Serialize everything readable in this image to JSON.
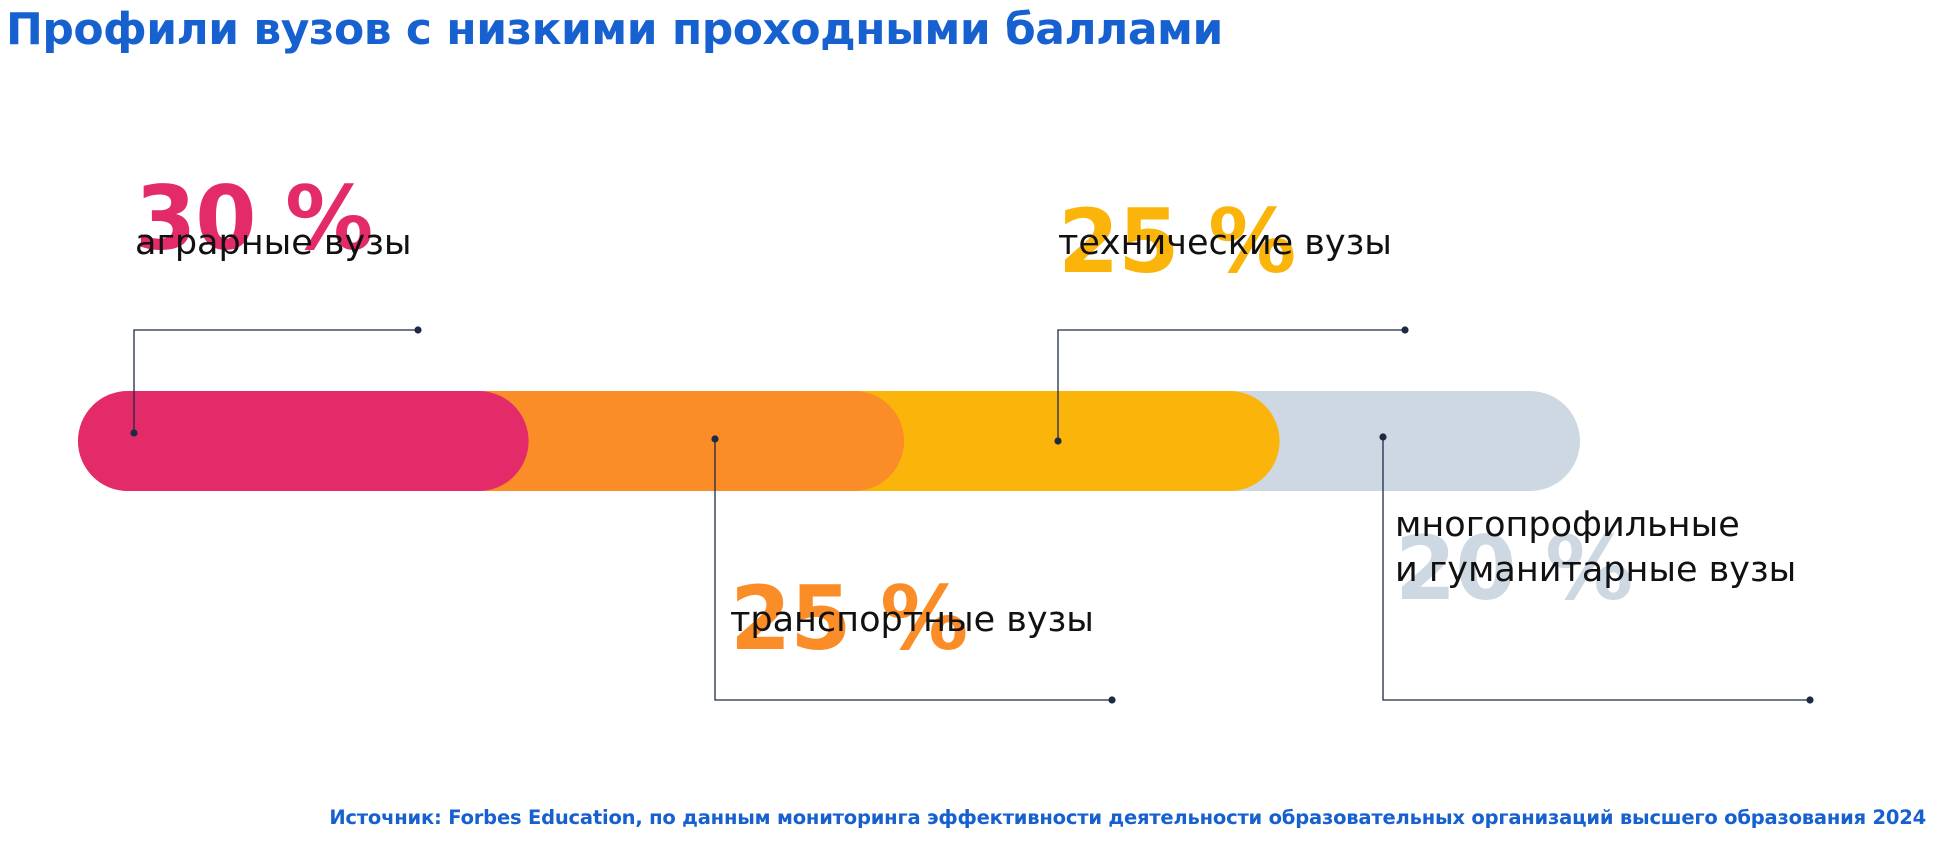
{
  "title": "Профили вузов с низкими проходными баллами",
  "source": "Источник: Forbes Education, по данным мониторинга эффективности деятельности образовательных организаций высшего образования 2024",
  "chart_data": {
    "type": "bar",
    "orientation": "horizontal-stacked",
    "categories": [
      "аграрные вузы",
      "транспортные вузы",
      "технические вузы",
      "многопрофильные и гуманитарные вузы"
    ],
    "values": [
      30,
      25,
      25,
      20
    ],
    "value_labels": [
      "30 %",
      "25 %",
      "25 %",
      "20 %"
    ],
    "label_lines": [
      [
        "аграрные вузы"
      ],
      [
        "транспортные вузы"
      ],
      [
        "технические вузы"
      ],
      [
        "многопрофильные",
        "и гуманитарные вузы"
      ]
    ],
    "colors": [
      "#e42b6a",
      "#fa8d27",
      "#fbb40a",
      "#cdd8e3"
    ],
    "units": "%"
  }
}
